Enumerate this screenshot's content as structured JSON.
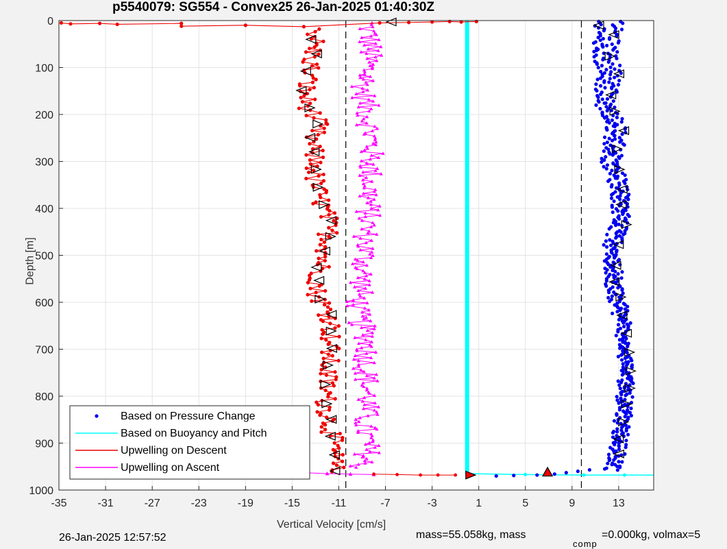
{
  "chart_data": {
    "type": "scatter",
    "title": "p5540079: SG554 - Convex25 26-Jan-2025 01:40:30Z",
    "xlabel": "Vertical Velocity [cm/s]",
    "ylabel": "Depth [m]",
    "xlim": [
      -35,
      16
    ],
    "ylim": [
      0,
      1000
    ],
    "y_reversed": true,
    "grid": true,
    "xticks": [
      -35,
      -31,
      -27,
      -23,
      -19,
      -15,
      -11,
      -7,
      -3,
      1,
      5,
      9,
      13
    ],
    "yticks": [
      0,
      100,
      200,
      300,
      400,
      500,
      600,
      700,
      800,
      900,
      1000
    ],
    "reference_lines": [
      -10.4,
      9.8
    ],
    "legend": {
      "placement": "bottom-left",
      "entries": [
        {
          "label": "Based on Pressure Change",
          "color": "#0000ee",
          "style": "dots"
        },
        {
          "label": "Based on Buoyancy and Pitch",
          "color": "#00ffff",
          "style": "line"
        },
        {
          "label": "Upwelling on Descent",
          "color": "#ee0000",
          "style": "line-dots"
        },
        {
          "label": "Upwelling on Ascent",
          "color": "#ff00ff",
          "style": "line-triangles"
        }
      ]
    },
    "series": [
      {
        "name": "Based on Pressure Change",
        "color": "#0000ee",
        "descent_anchors": [
          [
            11.5,
            5
          ],
          [
            11.2,
            60
          ],
          [
            11.6,
            120
          ],
          [
            11.3,
            170
          ],
          [
            12.4,
            230
          ],
          [
            12.0,
            300
          ],
          [
            12.8,
            360
          ],
          [
            13.0,
            420
          ],
          [
            12.1,
            480
          ],
          [
            12.3,
            560
          ],
          [
            13.2,
            650
          ],
          [
            13.5,
            750
          ],
          [
            13.2,
            840
          ],
          [
            12.6,
            930
          ],
          [
            12.4,
            960
          ]
        ],
        "ascent_anchors": [
          [
            12.9,
            5
          ],
          [
            12.4,
            60
          ],
          [
            12.8,
            120
          ],
          [
            12.2,
            170
          ],
          [
            13.2,
            230
          ],
          [
            12.8,
            300
          ],
          [
            13.4,
            360
          ],
          [
            13.6,
            420
          ],
          [
            12.8,
            480
          ],
          [
            12.8,
            560
          ],
          [
            13.7,
            650
          ],
          [
            13.8,
            750
          ],
          [
            13.6,
            840
          ],
          [
            13.0,
            930
          ],
          [
            12.7,
            955
          ]
        ],
        "surface_points": [
          [
            2.5,
            970
          ],
          [
            4.0,
            969
          ],
          [
            6.0,
            968
          ],
          [
            7.5,
            966
          ],
          [
            8.5,
            963
          ],
          [
            9.5,
            960
          ],
          [
            10.5,
            957
          ],
          [
            11.8,
            955
          ]
        ]
      },
      {
        "name": "Based on Buoyancy and Pitch",
        "color": "#00ffff",
        "points": [
          [
            0,
            0
          ],
          [
            0,
            965
          ],
          [
            5,
            967
          ],
          [
            10,
            968
          ],
          [
            16,
            968
          ]
        ]
      },
      {
        "name": "Upwelling on Descent",
        "color": "#ee0000",
        "anchors": [
          [
            -12.8,
            15
          ],
          [
            -13.2,
            60
          ],
          [
            -13.5,
            110
          ],
          [
            -13.9,
            150
          ],
          [
            -13.8,
            175
          ],
          [
            -12.8,
            220
          ],
          [
            -13.4,
            260
          ],
          [
            -13.0,
            300
          ],
          [
            -13.1,
            340
          ],
          [
            -12.6,
            380
          ],
          [
            -12.0,
            420
          ],
          [
            -11.8,
            470
          ],
          [
            -12.6,
            530
          ],
          [
            -12.9,
            580
          ],
          [
            -11.6,
            640
          ],
          [
            -11.8,
            700
          ],
          [
            -12.0,
            760
          ],
          [
            -12.1,
            820
          ],
          [
            -11.6,
            880
          ],
          [
            -11.4,
            940
          ],
          [
            -11.4,
            965
          ]
        ],
        "surface_points": [
          [
            -34.8,
            5
          ],
          [
            -34,
            7
          ],
          [
            -31.5,
            6
          ],
          [
            -30,
            8
          ],
          [
            -24.5,
            6
          ],
          [
            -24.5,
            12
          ],
          [
            -19,
            10
          ],
          [
            -14,
            13
          ],
          [
            -7.5,
            5
          ],
          [
            -5,
            4
          ],
          [
            -3,
            3
          ],
          [
            -1.5,
            2
          ],
          [
            -0.5,
            3
          ],
          [
            0.8,
            2
          ]
        ],
        "bottom_points": [
          [
            -8,
            966
          ],
          [
            -6,
            967
          ],
          [
            -4,
            968
          ],
          [
            -2.5,
            968
          ],
          [
            -1,
            968
          ]
        ]
      },
      {
        "name": "Upwelling on Ascent",
        "color": "#ff00ff",
        "anchors": [
          [
            -8.5,
            10
          ],
          [
            -8.3,
            60
          ],
          [
            -8.6,
            110
          ],
          [
            -8.9,
            150
          ],
          [
            -8.5,
            200
          ],
          [
            -8.2,
            260
          ],
          [
            -8.3,
            320
          ],
          [
            -8.4,
            380
          ],
          [
            -8.6,
            440
          ],
          [
            -8.8,
            500
          ],
          [
            -9.0,
            560
          ],
          [
            -9.5,
            620
          ],
          [
            -8.5,
            680
          ],
          [
            -8.7,
            740
          ],
          [
            -8.5,
            800
          ],
          [
            -8.8,
            860
          ],
          [
            -8.5,
            920
          ],
          [
            -9.2,
            955
          ]
        ],
        "surface_points": [
          [
            -15,
            960
          ],
          [
            -14,
            963
          ],
          [
            -12,
            965
          ],
          [
            -10,
            966
          ],
          [
            -8,
            967
          ]
        ]
      }
    ],
    "markers": [
      {
        "type": "triangle-left",
        "x": -6.5,
        "y": 3
      },
      {
        "type": "triangle-left",
        "x": 11.3,
        "y": 10
      },
      {
        "type": "triangle-right",
        "x": 0.3,
        "y": 968
      },
      {
        "type": "triangle-up-filled",
        "x": 6.9,
        "y": 962,
        "color": "#ee0000"
      }
    ]
  },
  "footer": {
    "timestamp": "26-Jan-2025 12:57:52",
    "mass_text": "mass=55.058kg, mass",
    "comp_sub": "comp",
    "comp_text": "=0.000kg, volmax=5"
  }
}
